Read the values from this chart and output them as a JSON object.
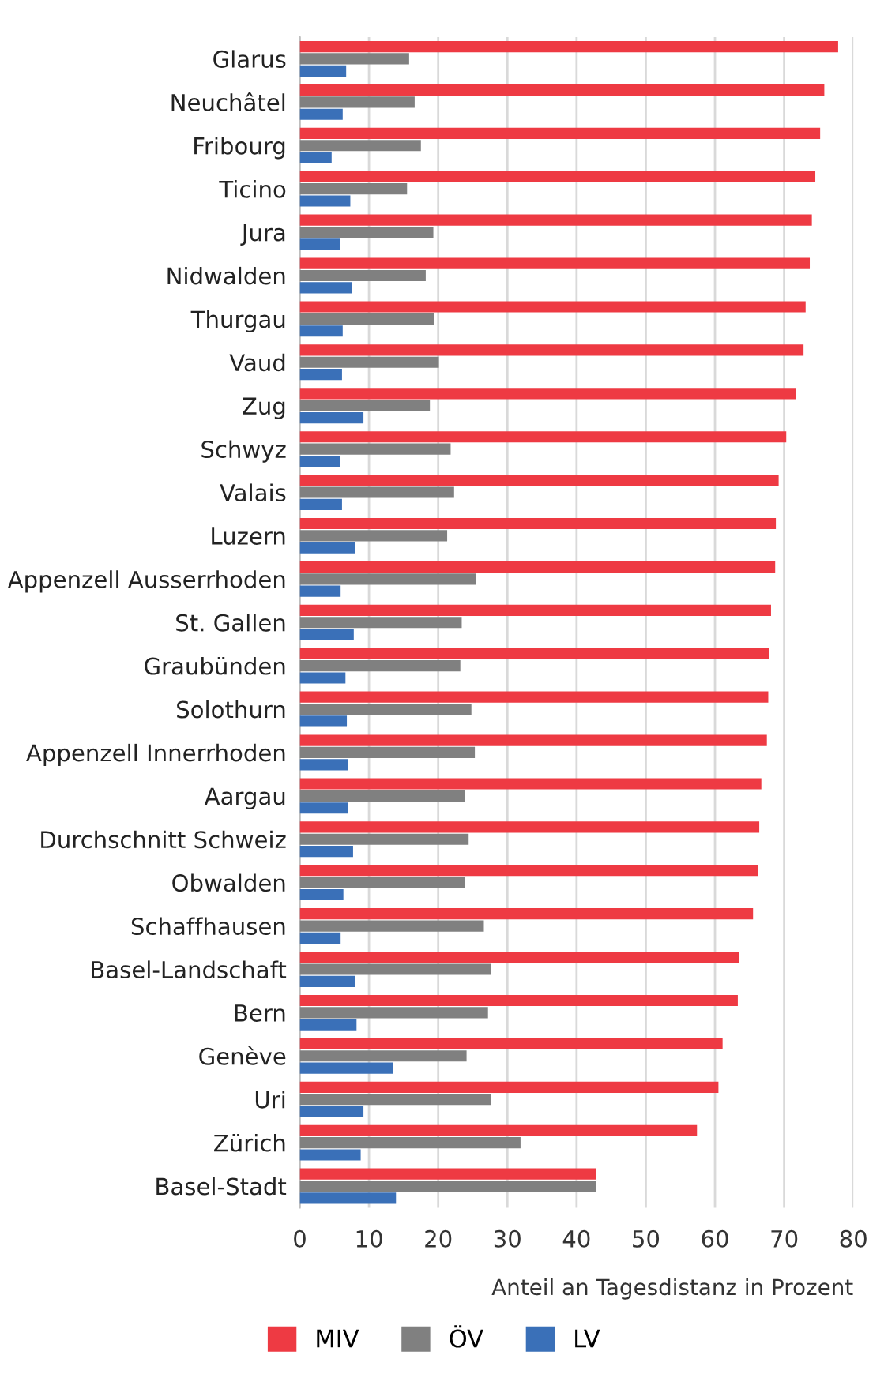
{
  "chart_data": {
    "type": "bar",
    "orientation": "horizontal",
    "xlabel": "Anteil an Tagesdistanz in Prozent",
    "categories": [
      "Glarus",
      "Neuchâtel",
      "Fribourg",
      "Ticino",
      "Jura",
      "Nidwalden",
      "Thurgau",
      "Vaud",
      "Zug",
      "Schwyz",
      "Valais",
      "Luzern",
      "Appenzell Ausserrhoden",
      "St. Gallen",
      "Graubünden",
      "Solothurn",
      "Appenzell Innerrhoden",
      "Aargau",
      "Durchschnitt Schweiz",
      "Obwalden",
      "Schaffhausen",
      "Basel-Landschaft",
      "Bern",
      "Genève",
      "Uri",
      "Zürich",
      "Basel-Stadt"
    ],
    "series": [
      {
        "name": "MIV",
        "color": "#ee3a43",
        "values": [
          77.8,
          75.8,
          75.2,
          74.5,
          74.0,
          73.7,
          73.1,
          72.8,
          71.7,
          70.3,
          69.2,
          68.8,
          68.7,
          68.1,
          67.8,
          67.7,
          67.5,
          66.7,
          66.4,
          66.2,
          65.5,
          63.5,
          63.3,
          61.1,
          60.5,
          57.4,
          42.8
        ]
      },
      {
        "name": "ÖV",
        "color": "#808080",
        "values": [
          15.8,
          16.6,
          17.5,
          15.5,
          19.3,
          18.2,
          19.4,
          20.1,
          18.8,
          21.8,
          22.3,
          21.3,
          25.5,
          23.4,
          23.2,
          24.8,
          25.3,
          23.9,
          24.4,
          23.9,
          26.6,
          27.6,
          27.2,
          24.1,
          27.6,
          31.9,
          42.8
        ]
      },
      {
        "name": "LV",
        "color": "#3a70b8",
        "values": [
          6.7,
          6.2,
          4.6,
          7.3,
          5.8,
          7.5,
          6.2,
          6.1,
          9.2,
          5.8,
          6.1,
          8.0,
          5.9,
          7.8,
          6.6,
          6.8,
          7.0,
          7.0,
          7.7,
          6.3,
          5.9,
          8.0,
          8.2,
          13.5,
          9.2,
          8.8,
          13.9
        ]
      }
    ],
    "xlim": [
      0,
      80
    ],
    "xticks": [
      0,
      10,
      20,
      30,
      40,
      50,
      60,
      70,
      80
    ],
    "grid": "x",
    "legend": "bottom"
  }
}
